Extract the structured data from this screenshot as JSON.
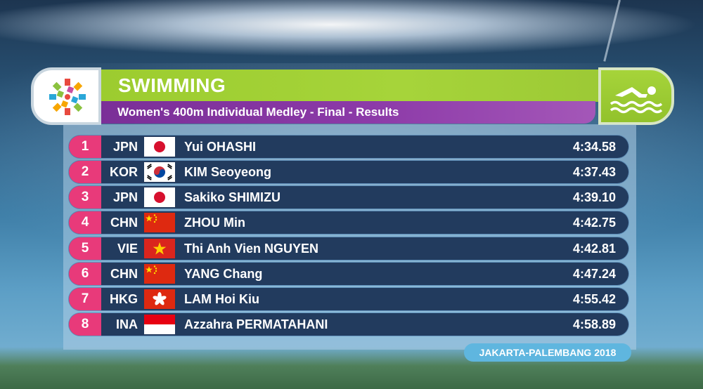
{
  "header": {
    "sport": "SWIMMING",
    "event": "Women's 400m Individual Medley - Final - Results"
  },
  "icons": {
    "logo": "asian-games-logo-icon",
    "sport": "swimmer-icon"
  },
  "colors": {
    "header_green": "#a6d43a",
    "header_purple": "#8c3aa8",
    "rank_pink": "#e83a7a",
    "row_navy": "#223b5e",
    "footer_blue": "#5fb6df"
  },
  "results": [
    {
      "rank": "1",
      "country": "JPN",
      "flag": "japan-flag-icon",
      "name": "Yui OHASHI",
      "time": "4:34.58"
    },
    {
      "rank": "2",
      "country": "KOR",
      "flag": "south-korea-flag-icon",
      "name": "KIM Seoyeong",
      "time": "4:37.43"
    },
    {
      "rank": "3",
      "country": "JPN",
      "flag": "japan-flag-icon",
      "name": "Sakiko SHIMIZU",
      "time": "4:39.10"
    },
    {
      "rank": "4",
      "country": "CHN",
      "flag": "china-flag-icon",
      "name": "ZHOU Min",
      "time": "4:42.75"
    },
    {
      "rank": "5",
      "country": "VIE",
      "flag": "vietnam-flag-icon",
      "name": "Thi Anh Vien NGUYEN",
      "time": "4:42.81"
    },
    {
      "rank": "6",
      "country": "CHN",
      "flag": "china-flag-icon",
      "name": "YANG Chang",
      "time": "4:47.24"
    },
    {
      "rank": "7",
      "country": "HKG",
      "flag": "hong-kong-flag-icon",
      "name": "LAM Hoi Kiu",
      "time": "4:55.42"
    },
    {
      "rank": "8",
      "country": "INA",
      "flag": "indonesia-flag-icon",
      "name": "Azzahra PERMATAHANI",
      "time": "4:58.89"
    }
  ],
  "footer": {
    "host": "JAKARTA-PALEMBANG 2018"
  }
}
